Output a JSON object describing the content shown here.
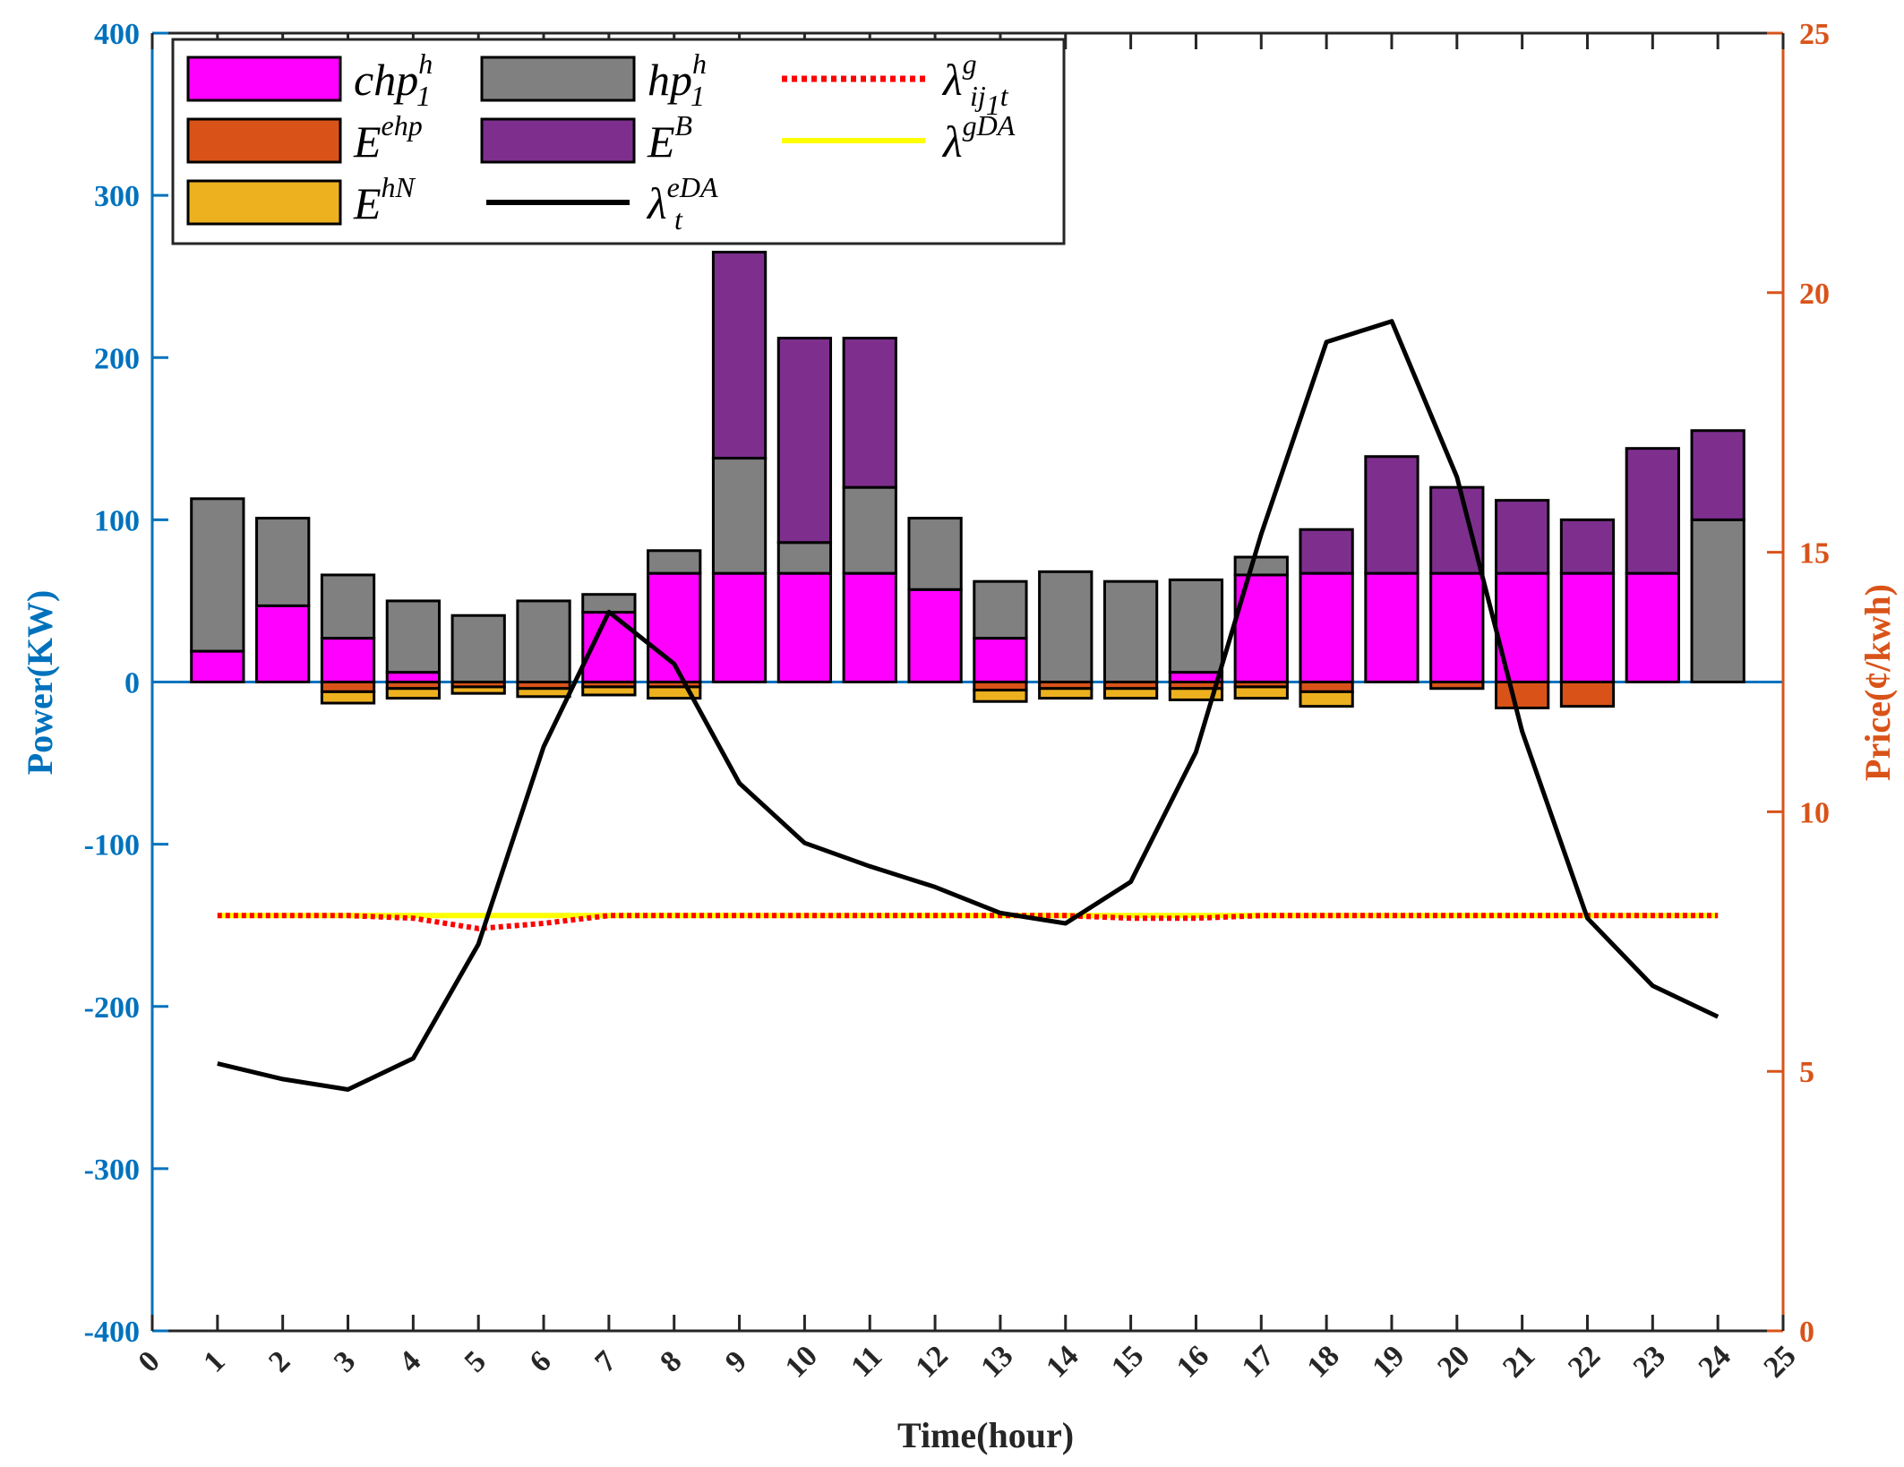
{
  "chart_data": {
    "type": "bar",
    "xlabel": "Time(hour)",
    "ylabel_left": "Power(KW)",
    "ylabel_right": "Price(¢/kwh)",
    "xlim": [
      0,
      25
    ],
    "ylim_left": [
      -400,
      400
    ],
    "ylim_right": [
      0,
      25
    ],
    "x_ticks": [
      "0",
      "1",
      "2",
      "3",
      "4",
      "5",
      "6",
      "7",
      "8",
      "9",
      "10",
      "11",
      "12",
      "13",
      "14",
      "15",
      "16",
      "17",
      "18",
      "19",
      "20",
      "21",
      "22",
      "23",
      "24",
      "25"
    ],
    "y_left_ticks": [
      "400",
      "300",
      "200",
      "100",
      "0",
      "-100",
      "-200",
      "-300",
      "-400"
    ],
    "y_right_ticks": [
      "25",
      "20",
      "15",
      "10",
      "5",
      "0"
    ],
    "categories": [
      1,
      2,
      3,
      4,
      5,
      6,
      7,
      8,
      9,
      10,
      11,
      12,
      13,
      14,
      15,
      16,
      17,
      18,
      19,
      20,
      21,
      22,
      23,
      24
    ],
    "bar_series_positive": [
      {
        "name": "chp_1^h",
        "color": "#FF00FF",
        "values": [
          19,
          47,
          27,
          6,
          0,
          0,
          43,
          67,
          67,
          67,
          67,
          57,
          27,
          0,
          0,
          6,
          66,
          67,
          67,
          67,
          67,
          67,
          67,
          0
        ]
      },
      {
        "name": "hp_1^h",
        "color": "#808080",
        "values": [
          94,
          54,
          39,
          44,
          41,
          50,
          11,
          14,
          71,
          19,
          53,
          44,
          35,
          68,
          62,
          57,
          11,
          0,
          0,
          0,
          0,
          0,
          0,
          100
        ]
      },
      {
        "name": "E^B",
        "color": "#7E2F8E",
        "values": [
          0,
          0,
          0,
          0,
          0,
          0,
          0,
          0,
          127,
          126,
          92,
          0,
          0,
          0,
          0,
          0,
          0,
          27,
          72,
          53,
          45,
          33,
          77,
          55
        ]
      }
    ],
    "bar_series_negative": [
      {
        "name": "E^ehp",
        "color": "#D95319",
        "values": [
          0,
          0,
          -6,
          -4,
          -3,
          -4,
          -3,
          -3,
          0,
          0,
          0,
          0,
          -5,
          -4,
          -4,
          -4,
          -3,
          -6,
          0,
          -4,
          -16,
          -15,
          0,
          0
        ]
      },
      {
        "name": "E^hN",
        "color": "#EDB120",
        "values": [
          0,
          0,
          -7,
          -6,
          -4,
          -5,
          -5,
          -7,
          0,
          0,
          0,
          0,
          -7,
          -6,
          -6,
          -7,
          -7,
          -9,
          0,
          0,
          0,
          0,
          0,
          0
        ]
      }
    ],
    "line_series": [
      {
        "name": "λ_t^eDA",
        "color": "#000000",
        "axis": "right",
        "x": [
          1,
          2,
          3,
          4,
          5,
          6,
          7,
          8,
          9,
          10,
          11,
          12,
          13,
          14,
          15,
          16,
          17,
          18,
          19,
          20,
          21,
          22,
          23,
          24
        ],
        "values": [
          5.15,
          4.85,
          4.65,
          5.25,
          7.45,
          11.25,
          13.85,
          12.85,
          10.55,
          9.4,
          8.95,
          8.55,
          8.05,
          7.85,
          8.65,
          11.15,
          15.35,
          19.05,
          19.45,
          16.45,
          11.55,
          7.95,
          6.65,
          6.05
        ]
      },
      {
        "name": "λ_ij1t^g",
        "color": "#FF0000",
        "axis": "right",
        "style": "dotted",
        "x": [
          1,
          2,
          3,
          4,
          5,
          6,
          7,
          8,
          9,
          10,
          11,
          12,
          13,
          14,
          15,
          16,
          17,
          18,
          19,
          20,
          21,
          22,
          23,
          24
        ],
        "values": [
          8.0,
          8.0,
          8.0,
          7.95,
          7.75,
          7.85,
          8.0,
          8.0,
          8.0,
          8.0,
          8.0,
          8.0,
          8.0,
          8.0,
          7.95,
          7.95,
          8.0,
          8.0,
          8.0,
          8.0,
          8.0,
          8.0,
          8.0,
          8.0
        ]
      },
      {
        "name": "λ^gDA",
        "color": "#FFFF00",
        "axis": "right",
        "x": [
          1,
          2,
          3,
          4,
          5,
          6,
          7,
          8,
          9,
          10,
          11,
          12,
          13,
          14,
          15,
          16,
          17,
          18,
          19,
          20,
          21,
          22,
          23,
          24
        ],
        "values": [
          8.0,
          8.0,
          8.0,
          8.0,
          8.0,
          8.0,
          8.0,
          8.0,
          8.0,
          8.0,
          8.0,
          8.0,
          8.0,
          8.0,
          8.0,
          8.0,
          8.0,
          8.0,
          8.0,
          8.0,
          8.0,
          8.0,
          8.0,
          8.0
        ]
      }
    ],
    "zero_line": {
      "value": 0,
      "color": "#0072BD"
    },
    "legend": {
      "placement": "top-left",
      "entries": [
        {
          "base": "chp",
          "sub": "1",
          "sup": "h",
          "color": "#FF00FF",
          "kind": "bar"
        },
        {
          "base": "hp",
          "sub": "1",
          "sup": "h",
          "color": "#808080",
          "kind": "bar"
        },
        {
          "base": "λ",
          "sub": "ij",
          "sub2": "1",
          "sub3": "t",
          "sup": "g",
          "color": "#FF0000",
          "kind": "dotted"
        },
        {
          "base": "E",
          "sup": "ehp",
          "color": "#D95319",
          "kind": "bar"
        },
        {
          "base": "E",
          "sup": "B",
          "color": "#7E2F8E",
          "kind": "bar"
        },
        {
          "base": "λ",
          "sup": "gDA",
          "color": "#FFFF00",
          "kind": "line"
        },
        {
          "base": "E",
          "sup": "hN",
          "color": "#EDB120",
          "kind": "bar"
        },
        {
          "base": "λ",
          "sub": "t",
          "sup": "eDA",
          "color": "#000000",
          "kind": "line"
        }
      ]
    },
    "colors": {
      "left_axis": "#0072BD",
      "right_axis": "#D95319"
    }
  }
}
